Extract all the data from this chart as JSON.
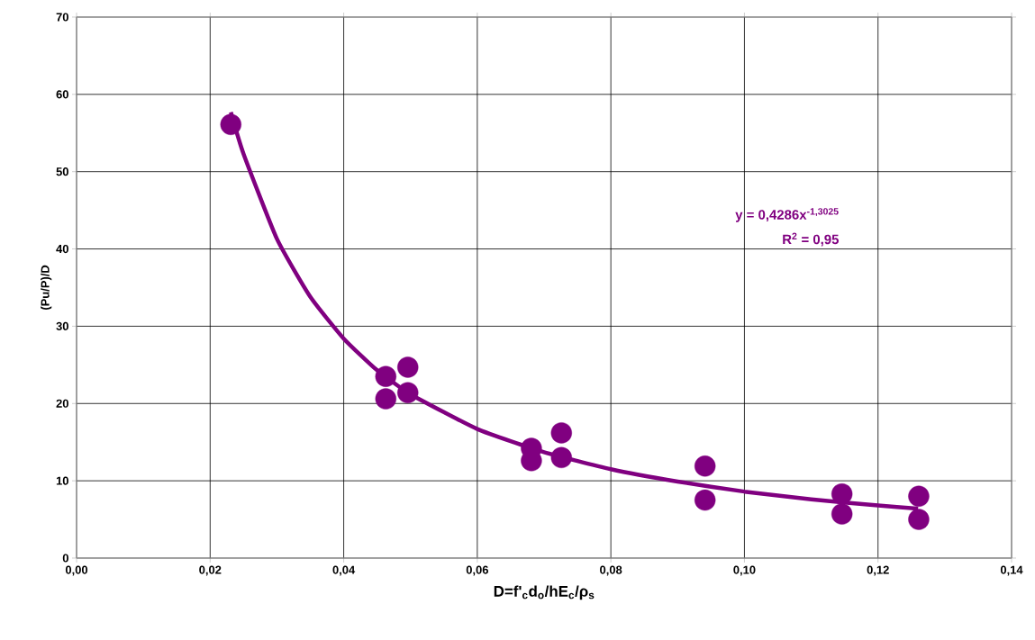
{
  "chart_data": {
    "type": "scatter",
    "xlabel": "D=f'$_{c}$d$_{o}$/hE$_{c}$/ρ$_{s}$",
    "ylabel": "(Pu/P)/D",
    "xlim": [
      0,
      0.14
    ],
    "ylim": [
      0,
      70
    ],
    "xticks": [
      {
        "value": 0,
        "label": "0,00"
      },
      {
        "value": 0.02,
        "label": "0,02"
      },
      {
        "value": 0.04,
        "label": "0,04"
      },
      {
        "value": 0.06,
        "label": "0,06"
      },
      {
        "value": 0.08,
        "label": "0,08"
      },
      {
        "value": 0.1,
        "label": "0,10"
      },
      {
        "value": 0.12,
        "label": "0,12"
      },
      {
        "value": 0.14,
        "label": "0,14"
      }
    ],
    "yticks": [
      0,
      10,
      20,
      30,
      40,
      50,
      60,
      70
    ],
    "grid": true,
    "annotations": [
      "y = 0,4286x$^{-1,3025}$",
      "R$^{2}$ = 0,95"
    ],
    "series": [
      {
        "color": "#800080",
        "marker": "circle",
        "x": [
          0.0231,
          0.0463,
          0.0463,
          0.0496,
          0.0496,
          0.0681,
          0.0681,
          0.0726,
          0.0726,
          0.0941,
          0.0941,
          0.1146,
          0.1146,
          0.1261,
          0.1261
        ],
        "values": [
          56.1,
          23.5,
          20.6,
          24.7,
          21.4,
          14.2,
          12.6,
          16.2,
          13.0,
          11.9,
          7.5,
          8.3,
          5.7,
          8.0,
          5.0
        ]
      },
      {
        "type": "line",
        "color": "#800080",
        "marker": "none",
        "line_style": "solid",
        "x": [
          0.0231,
          0.025,
          0.03,
          0.035,
          0.04,
          0.045,
          0.05,
          0.06,
          0.07,
          0.08,
          0.09,
          0.1,
          0.11,
          0.12,
          0.126
        ],
        "values": [
          57.7,
          52.3,
          41.3,
          33.8,
          28.4,
          24.3,
          21.2,
          16.7,
          13.7,
          11.5,
          9.9,
          8.6,
          7.6,
          6.8,
          6.4
        ]
      }
    ]
  }
}
